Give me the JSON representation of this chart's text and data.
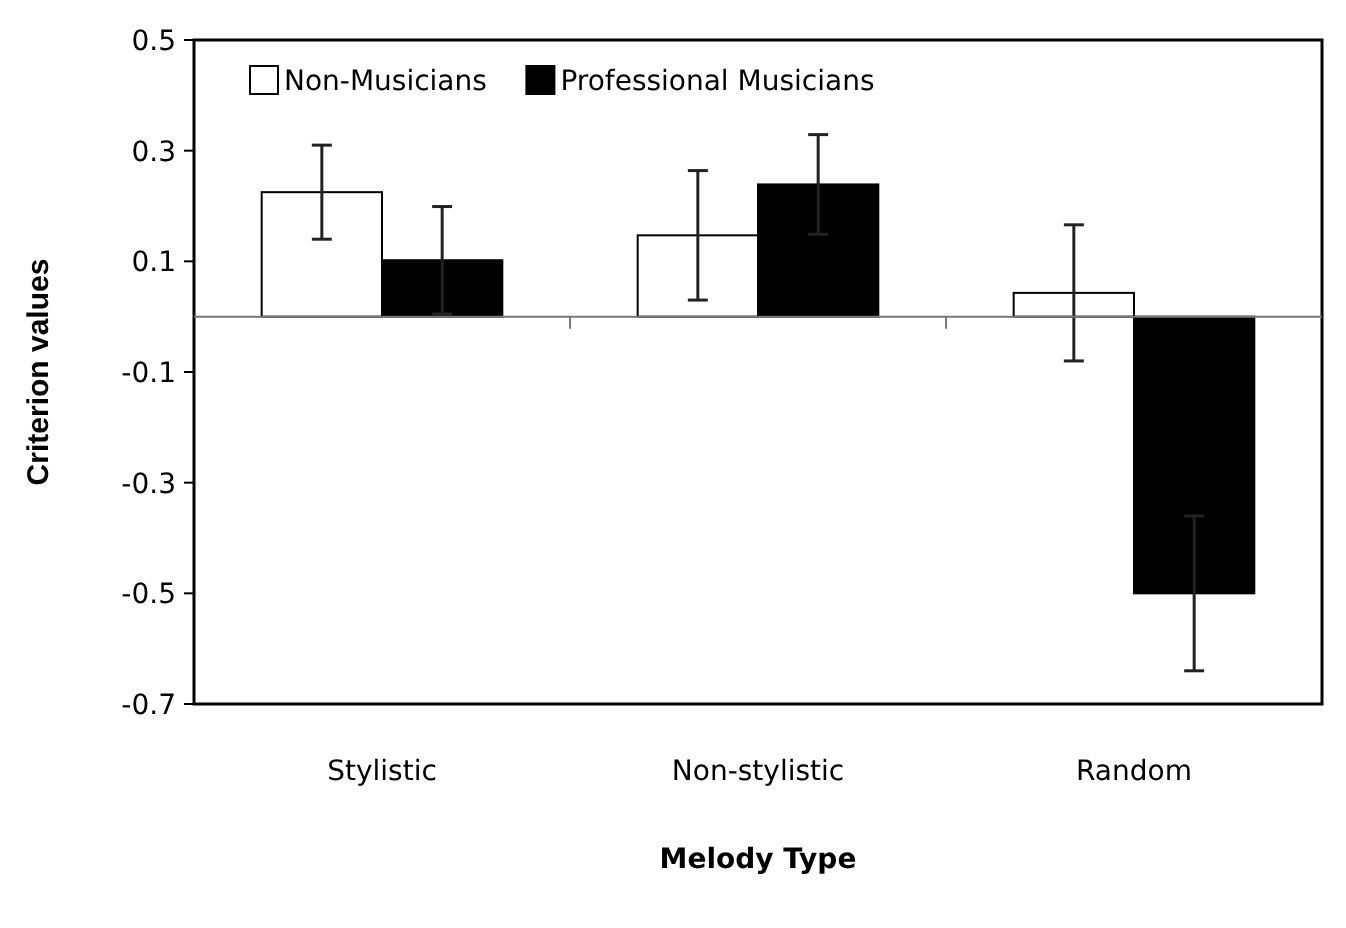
{
  "chart_data": {
    "type": "bar",
    "xlabel": "Melody Type",
    "ylabel": "Criterion values",
    "categories": [
      "Stylistic",
      "Non-stylistic",
      "Random"
    ],
    "series": [
      {
        "name": "Non-Musicians",
        "color": "#ffffff",
        "values": [
          0.225,
          0.147,
          0.043
        ],
        "errors": [
          0.085,
          0.117,
          0.123
        ]
      },
      {
        "name": "Professional Musicians",
        "color": "#000000",
        "values": [
          0.102,
          0.239,
          -0.5
        ],
        "errors": [
          0.097,
          0.09,
          0.14
        ]
      }
    ],
    "ylim": [
      -0.7,
      0.5
    ],
    "yticks": [
      0.5,
      0.3,
      0.1,
      -0.1,
      -0.3,
      -0.5,
      -0.7
    ],
    "grid": false,
    "legend": "top left"
  }
}
